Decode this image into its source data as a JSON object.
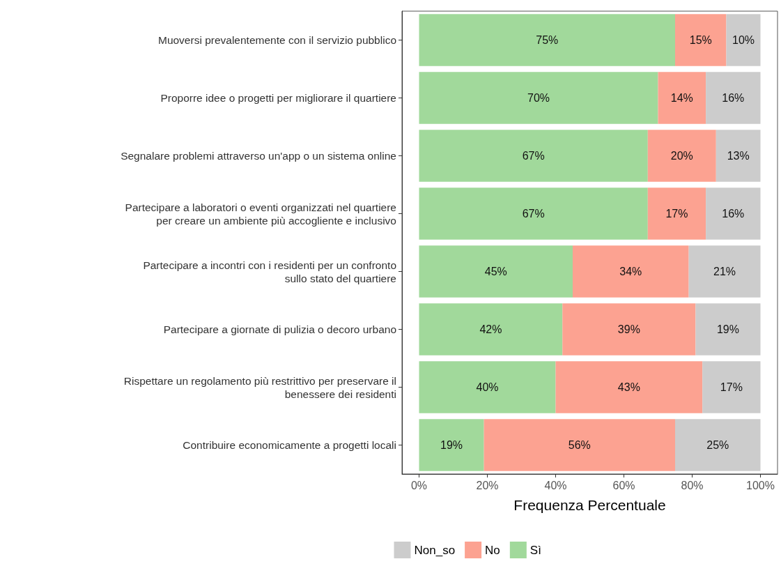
{
  "chart_data": {
    "type": "bar",
    "orientation": "horizontal",
    "stacked": true,
    "xlabel": "Frequenza Percentuale",
    "categories": [
      "Muoversi prevalentemente con il servizio pubblico",
      "Proporre idee o progetti per migliorare il quartiere",
      "Segnalare problemi attraverso un'app o un sistema online",
      "Partecipare a laboratori o eventi organizzati nel quartiere\nper creare un ambiente più accogliente e inclusivo",
      "Partecipare a incontri con i residenti per un confronto\nsullo stato del quartiere",
      "Partecipare a giornate di pulizia o decoro urbano",
      "Rispettare un regolamento più restrittivo per preservare il\nbenessere dei residenti",
      "Contribuire economicamente a progetti locali"
    ],
    "series": [
      {
        "name": "Sì",
        "color": "#a1d99b",
        "values": [
          75,
          70,
          67,
          67,
          45,
          42,
          40,
          19
        ],
        "value_labels": [
          "75%",
          "70%",
          "67%",
          "67%",
          "45%",
          "42%",
          "40%",
          "19%"
        ]
      },
      {
        "name": "No",
        "color": "#fca291",
        "values": [
          15,
          14,
          20,
          17,
          34,
          39,
          43,
          56
        ],
        "value_labels": [
          "15%",
          "14%",
          "20%",
          "17%",
          "34%",
          "39%",
          "43%",
          "56%"
        ]
      },
      {
        "name": "Non_so",
        "color": "#cccccc",
        "values": [
          10,
          16,
          13,
          16,
          21,
          19,
          17,
          25
        ],
        "value_labels": [
          "10%",
          "16%",
          "13%",
          "16%",
          "21%",
          "19%",
          "17%",
          "25%"
        ]
      }
    ],
    "xlim": [
      -5,
      105
    ],
    "xticks": [
      {
        "value": 0,
        "label": "0%"
      },
      {
        "value": 20,
        "label": "20%"
      },
      {
        "value": 40,
        "label": "40%"
      },
      {
        "value": 60,
        "label": "60%"
      },
      {
        "value": 80,
        "label": "80%"
      },
      {
        "value": 100,
        "label": "100%"
      }
    ],
    "grid": false,
    "legend": "bottom"
  }
}
